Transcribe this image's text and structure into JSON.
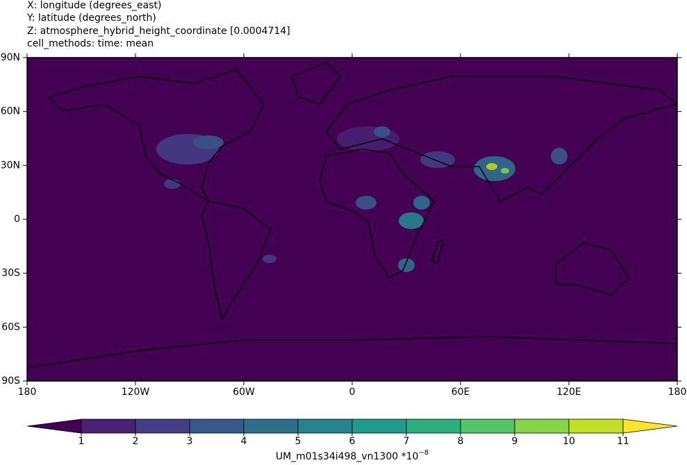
{
  "header": {
    "lines": [
      "X: longitude  (degrees_east)",
      "Y: latitude  (degrees_north)",
      "Z: atmosphere_hybrid_height_coordinate [0.0004714]",
      "cell_methods: time: mean"
    ]
  },
  "map": {
    "xlim": [
      -180,
      180
    ],
    "ylim": [
      -90,
      90
    ],
    "xticks": [
      {
        "value": -180,
        "label": "180"
      },
      {
        "value": -120,
        "label": "120W"
      },
      {
        "value": -60,
        "label": "60W"
      },
      0,
      {
        "value": 60,
        "label": "60E"
      },
      {
        "value": 120,
        "label": "120E"
      },
      {
        "value": 180,
        "label": "180"
      }
    ],
    "yticks": [
      {
        "value": -90,
        "label": "90S"
      },
      {
        "value": -60,
        "label": "60S"
      },
      {
        "value": -30,
        "label": "30S"
      },
      0,
      {
        "value": 30,
        "label": "30N"
      },
      {
        "value": 60,
        "label": "60N"
      },
      {
        "value": 90,
        "label": "90N"
      }
    ]
  },
  "colorbar": {
    "levels": [
      1,
      2,
      3,
      4,
      5,
      6,
      7,
      8,
      9,
      10,
      11
    ],
    "colors": [
      "#440154",
      "#482173",
      "#433e85",
      "#38588c",
      "#2d708e",
      "#25858e",
      "#1e9b8a",
      "#2ab07f",
      "#52c569",
      "#86d549",
      "#c2df23",
      "#fde725"
    ],
    "label": "UM_m01s34i498_vn1300 *10",
    "exponent": "−8"
  }
}
